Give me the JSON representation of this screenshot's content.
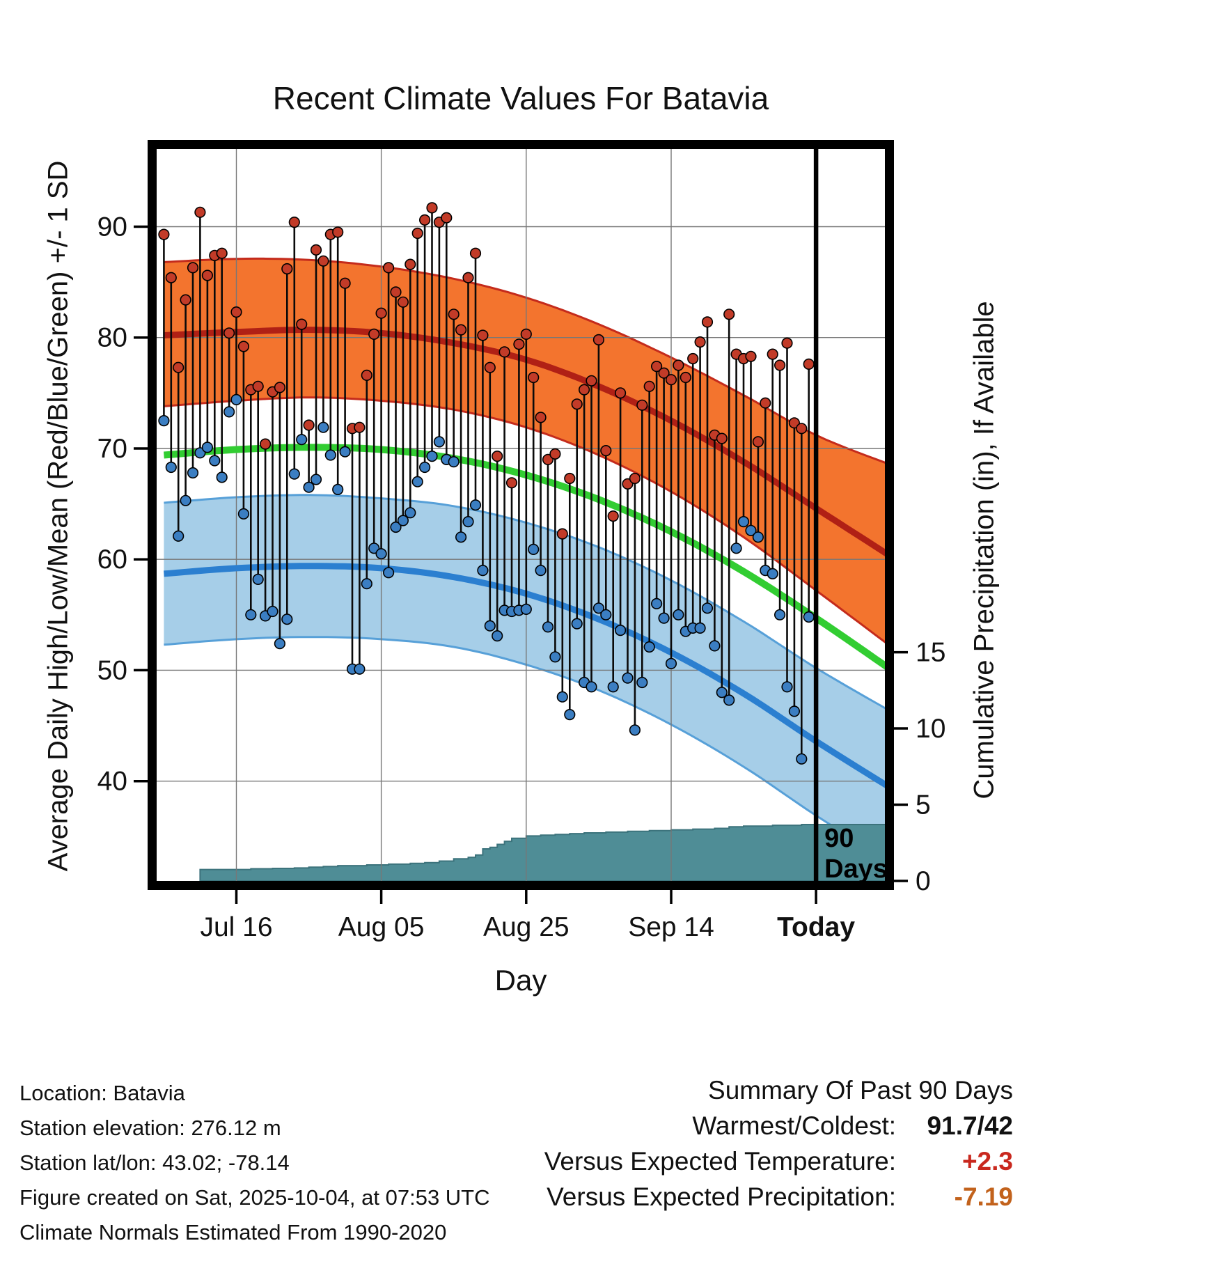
{
  "title": "Recent Climate Values For Batavia",
  "axes": {
    "left_label": "Average Daily High/Low/Mean (Red/Blue/Green) +/- 1 SD",
    "right_label": "Cumulative Precipitation (in), If Available",
    "x_label": "Day",
    "x_ticks": [
      "Jul 16",
      "Aug 05",
      "Aug 25",
      "Sep 14",
      "Today"
    ]
  },
  "annotation": {
    "line1": "90",
    "line2": "Days"
  },
  "footer_left": {
    "lines": [
      "Location: Batavia",
      "Station elevation: 276.12 m",
      "Station lat/lon: 43.02; -78.14",
      "Figure created on Sat, 2025-10-04, at 07:53 UTC",
      "Climate Normals Estimated From 1990-2020"
    ]
  },
  "summary": {
    "title": "Summary Of Past 90 Days",
    "rows": [
      {
        "label": "Warmest/Coldest:",
        "value": "91.7/42",
        "color": "#111111"
      },
      {
        "label": "Versus Expected Temperature:",
        "value": "+2.3",
        "color": "#C9281E"
      },
      {
        "label": "Versus Expected Precipitation:",
        "value": "-7.19",
        "color": "#C2621C"
      }
    ]
  },
  "colors": {
    "high_band_fill": "#F3742E",
    "high_band_edge": "#C42B1C",
    "high_mean_line": "#B02015",
    "mean_line": "#32CD32",
    "low_band_fill": "#A6CEE8",
    "low_band_edge": "#57A0D8",
    "low_mean_line": "#2B7FD0",
    "precip_fill": "#4F8D96",
    "precip_edge": "#3C737C",
    "high_dot": "#C23B28",
    "low_dot": "#3B7EC2",
    "stem": "#0A0A0A",
    "grid": "#777777",
    "frame": "#000000"
  },
  "chart_data": {
    "type": "combo",
    "description": "Daily high/low temperature stems (red/blue dots) with climatological normal bands (high/low mean +/- 1 SD), daily mean normal line (green), and cumulative precipitation step area (teal, right axis)",
    "x_unit": "day index (0 = Jul 06, 90 = Today Oct 04)",
    "x_domain": [
      -1,
      99.5
    ],
    "temp_domain": [
      31,
      97
    ],
    "precip_domain": [
      0,
      48
    ],
    "temp_ticks": [
      40,
      50,
      60,
      70,
      80,
      90
    ],
    "precip_ticks": [
      0,
      5,
      10,
      15
    ],
    "x_tick_positions": [
      10,
      30,
      50,
      70,
      90
    ],
    "bold_x_ticks": [
      "Today"
    ],
    "today_day": 90,
    "daily": {
      "highs": [
        89.3,
        85.4,
        77.3,
        83.4,
        86.3,
        91.3,
        85.6,
        87.4,
        87.6,
        80.4,
        82.3,
        79.2,
        75.3,
        75.6,
        70.4,
        75.1,
        75.5,
        86.2,
        90.4,
        81.2,
        72.1,
        87.9,
        86.9,
        89.3,
        89.5,
        84.9,
        71.8,
        71.9,
        76.6,
        80.3,
        82.2,
        86.3,
        84.1,
        83.2,
        86.6,
        89.4,
        90.6,
        91.7,
        90.4,
        90.8,
        82.1,
        80.7,
        85.4,
        87.6,
        80.2,
        77.3,
        69.3,
        78.7,
        66.9,
        79.4,
        80.3,
        76.4,
        72.8,
        69.0,
        69.5,
        62.3,
        67.3,
        74.0,
        75.3,
        76.1,
        79.8,
        69.8,
        63.9,
        75.0,
        66.8,
        67.3,
        73.9,
        75.6,
        77.4,
        76.8,
        76.2,
        77.5,
        76.4,
        78.1,
        79.6,
        81.4,
        71.2,
        70.9,
        82.1,
        78.5,
        78.1,
        78.3,
        70.6,
        74.1,
        78.5,
        77.5,
        79.5,
        72.3,
        71.8,
        77.6
      ],
      "lows": [
        72.5,
        68.3,
        62.1,
        65.3,
        67.8,
        69.6,
        70.1,
        68.9,
        67.4,
        73.3,
        74.4,
        64.1,
        55.0,
        58.2,
        54.9,
        55.3,
        52.4,
        54.6,
        67.7,
        70.8,
        66.5,
        67.2,
        71.9,
        69.4,
        66.3,
        69.7,
        50.1,
        50.1,
        57.8,
        61.0,
        60.5,
        58.8,
        62.9,
        63.5,
        64.2,
        67.0,
        68.3,
        69.3,
        70.6,
        69.0,
        68.8,
        62.0,
        63.4,
        64.9,
        59.0,
        54.0,
        53.1,
        55.4,
        55.3,
        55.4,
        55.5,
        60.9,
        59.0,
        53.9,
        51.2,
        47.6,
        46.0,
        54.2,
        48.9,
        48.5,
        55.6,
        55.0,
        48.5,
        53.6,
        49.3,
        44.6,
        48.9,
        52.1,
        56.0,
        54.7,
        50.6,
        55.0,
        53.5,
        53.8,
        53.8,
        55.6,
        52.2,
        48.0,
        47.3,
        61.0,
        63.4,
        62.6,
        62.0,
        59.0,
        58.7,
        55.0,
        48.5,
        46.3,
        42.0,
        54.8
      ]
    },
    "normals": {
      "days": [
        0,
        10,
        20,
        30,
        40,
        50,
        60,
        70,
        80,
        90,
        100
      ],
      "high_upper": [
        86.8,
        87.1,
        87.0,
        86.4,
        85.3,
        83.6,
        81.2,
        78.2,
        74.8,
        71.2,
        68.6
      ],
      "high_mean": [
        80.2,
        80.5,
        80.7,
        80.4,
        79.5,
        78.0,
        75.6,
        72.5,
        68.8,
        64.6,
        60.4
      ],
      "high_lower": [
        73.8,
        74.3,
        74.6,
        74.3,
        73.5,
        71.9,
        69.4,
        66.1,
        62.0,
        57.2,
        52.3
      ],
      "mean": [
        69.4,
        69.9,
        70.1,
        69.9,
        69.1,
        67.6,
        65.4,
        62.5,
        58.9,
        54.7,
        50.2
      ],
      "low_upper": [
        65.1,
        65.6,
        65.8,
        65.5,
        64.8,
        63.3,
        61.1,
        58.1,
        54.4,
        50.2,
        46.4
      ],
      "low_mean": [
        58.7,
        59.2,
        59.4,
        59.2,
        58.4,
        56.9,
        54.6,
        51.6,
        47.9,
        43.6,
        39.5
      ],
      "low_lower": [
        52.3,
        52.8,
        53.0,
        52.8,
        52.1,
        50.5,
        48.2,
        45.1,
        41.3,
        36.9,
        32.8
      ]
    },
    "precip_steps": [
      [
        5,
        0.75
      ],
      [
        12,
        0.8
      ],
      [
        15,
        0.82
      ],
      [
        18,
        0.85
      ],
      [
        20,
        0.9
      ],
      [
        22,
        0.95
      ],
      [
        24,
        1.0
      ],
      [
        28,
        1.05
      ],
      [
        31,
        1.1
      ],
      [
        34,
        1.15
      ],
      [
        36,
        1.2
      ],
      [
        38,
        1.3
      ],
      [
        40,
        1.45
      ],
      [
        42,
        1.55
      ],
      [
        43,
        1.7
      ],
      [
        44,
        2.1
      ],
      [
        45,
        2.2
      ],
      [
        46,
        2.4
      ],
      [
        47,
        2.6
      ],
      [
        48,
        2.8
      ],
      [
        50,
        2.95
      ],
      [
        52,
        3.0
      ],
      [
        54,
        3.05
      ],
      [
        56,
        3.1
      ],
      [
        58,
        3.15
      ],
      [
        61,
        3.2
      ],
      [
        64,
        3.25
      ],
      [
        67,
        3.3
      ],
      [
        70,
        3.35
      ],
      [
        73,
        3.4
      ],
      [
        76,
        3.45
      ],
      [
        78,
        3.55
      ],
      [
        80,
        3.6
      ],
      [
        84,
        3.65
      ],
      [
        88,
        3.7
      ],
      [
        100,
        3.7
      ]
    ]
  }
}
